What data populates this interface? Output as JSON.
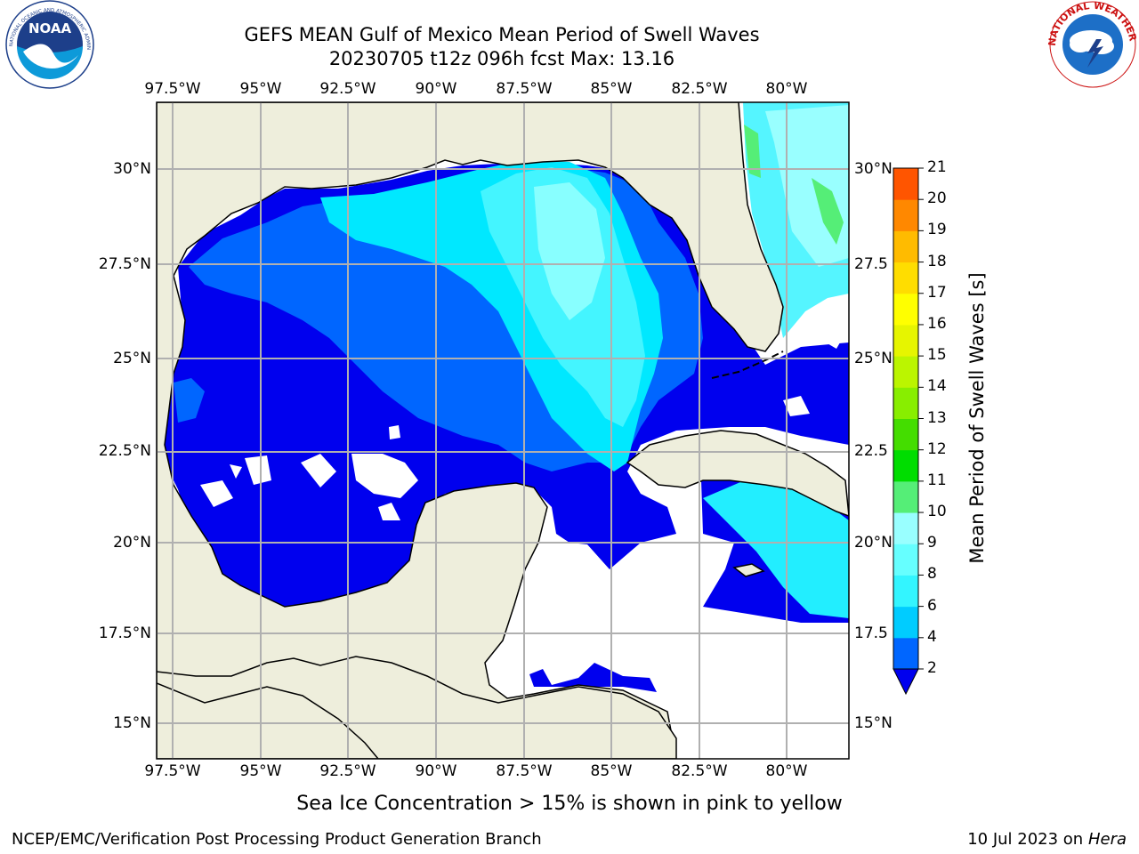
{
  "header": {
    "title_line1": "GEFS MEAN Gulf of Mexico Mean Period of Swell Waves",
    "title_line2": "20230705 t12z 096h fcst   Max: 13.16"
  },
  "logos": {
    "left": {
      "name": "noaa-logo",
      "text": "NOAA",
      "ring_text": "NATIONAL OCEANIC AND ATMOSPHERIC ADMINISTRATION · U.S. DEPARTMENT OF COMMERCE"
    },
    "right": {
      "name": "nws-logo",
      "ring_text": "NATIONAL WEATHER SERVICE"
    }
  },
  "map": {
    "lon_labels": [
      "97.5°W",
      "95°W",
      "92.5°W",
      "90°W",
      "87.5°W",
      "85°W",
      "82.5°W",
      "80°W"
    ],
    "lat_labels_left": [
      "30°N",
      "27.5°N",
      "25°N",
      "22.5°N",
      "20°N",
      "17.5°N",
      "15°N"
    ],
    "lat_labels_right": [
      "30°N",
      "27.5",
      "25°N",
      "22.5",
      "20°N",
      "17.5",
      "15°N"
    ],
    "colors": {
      "land": "#eeeedc",
      "ocean_missing": "#ffffff",
      "grid": "#b0b0b0",
      "coast": "#000000"
    }
  },
  "colorbar": {
    "label": "Mean Period of Swell Waves [s]",
    "ticks": [
      "2",
      "4",
      "6",
      "8",
      "9",
      "10",
      "11",
      "12",
      "13",
      "14",
      "15",
      "16",
      "17",
      "18",
      "19",
      "20",
      "21"
    ],
    "colors": [
      "#0066ff",
      "#00ccff",
      "#33f5ff",
      "#66ffff",
      "#99ffff",
      "#55ee77",
      "#00dd00",
      "#44dd00",
      "#88ee00",
      "#bbf500",
      "#e6f500",
      "#ffff00",
      "#ffdd00",
      "#ffbb00",
      "#ff8800",
      "#ff5500",
      "#ff2200",
      "#ff0000"
    ],
    "under_color": "#0000ee"
  },
  "footer": {
    "note": "Sea Ice Concentration > 15% is shown in pink to yellow",
    "left": "NCEP/EMC/Verification Post Processing Product Generation Branch",
    "right_date": "10 Jul 2023 on ",
    "right_host": "Hera"
  }
}
